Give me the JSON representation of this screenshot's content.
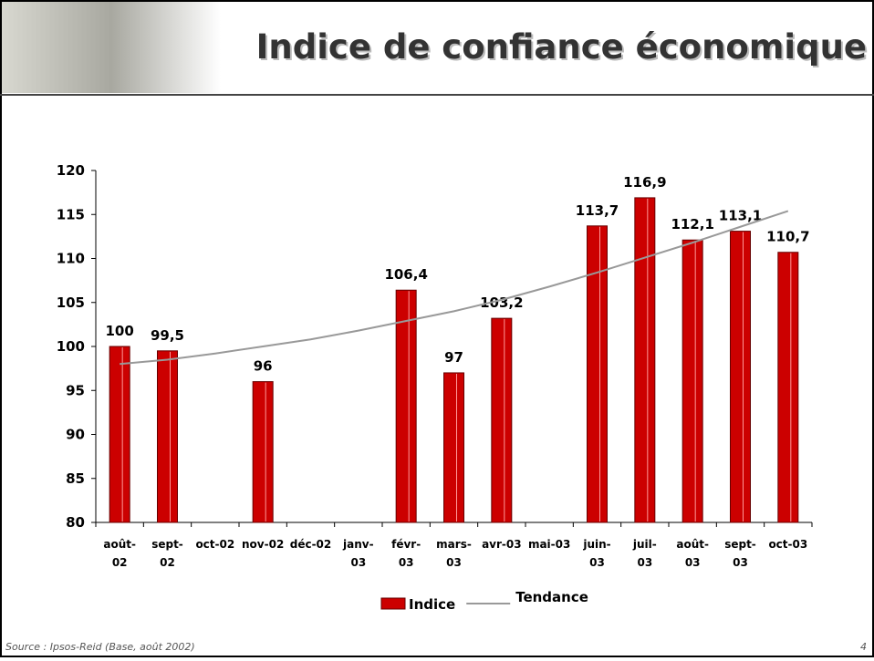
{
  "slide": {
    "title": "Indice de confiance économique",
    "source": "Source : Ipsos-Reid (Base, août 2002)",
    "page_number": "4"
  },
  "chart_data": {
    "type": "bar",
    "categories": [
      "août-02",
      "sept-02",
      "oct-02",
      "nov-02",
      "déc-02",
      "janv-03",
      "févr-03",
      "mars-03",
      "avr-03",
      "mai-03",
      "juin-03",
      "juil-03",
      "août-03",
      "sept-03",
      "oct-03"
    ],
    "series": [
      {
        "name": "Indice",
        "type": "bar",
        "color": "#cc0000",
        "values": [
          100,
          99.5,
          null,
          96,
          null,
          null,
          106.4,
          97,
          103.2,
          null,
          113.7,
          116.9,
          112.1,
          113.1,
          110.7
        ],
        "value_labels": [
          "100",
          "99,5",
          null,
          "96",
          null,
          null,
          "106,4",
          "97",
          "103,2",
          null,
          "113,7",
          "116,9",
          "112,1",
          "113,1",
          "110,7"
        ]
      },
      {
        "name": "Tendance",
        "type": "line",
        "color": "#999999",
        "values": [
          98.0,
          98.5,
          99.2,
          100.0,
          100.8,
          101.8,
          102.9,
          104.0,
          105.3,
          106.8,
          108.4,
          110.1,
          111.8,
          113.6,
          115.4
        ]
      }
    ],
    "ylim": [
      80,
      120
    ],
    "yticks": [
      80,
      85,
      90,
      95,
      100,
      105,
      110,
      115,
      120
    ],
    "grid": false,
    "legend": "bottom"
  }
}
